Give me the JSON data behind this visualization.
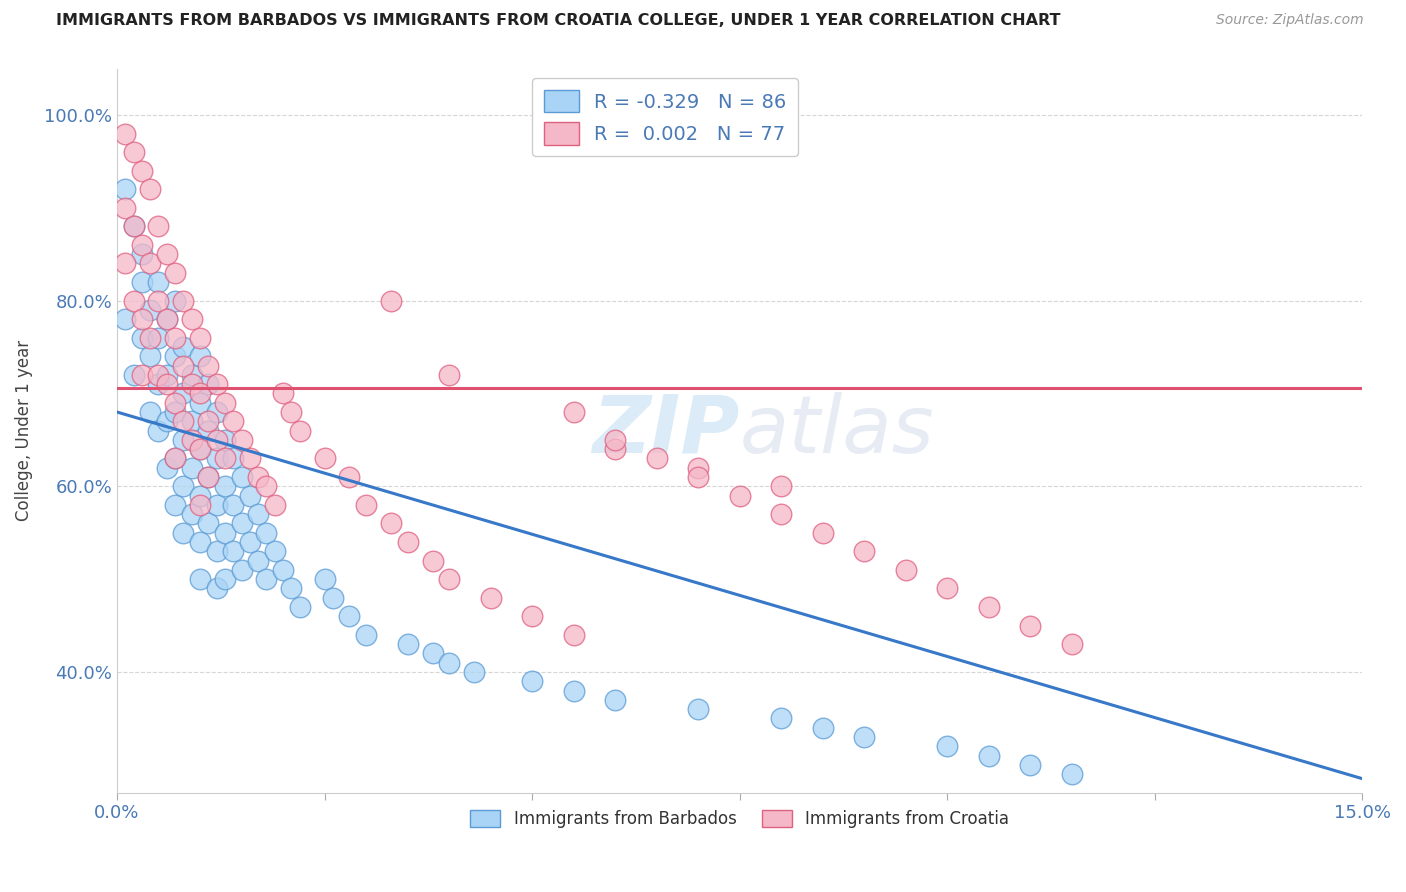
{
  "title": "IMMIGRANTS FROM BARBADOS VS IMMIGRANTS FROM CROATIA COLLEGE, UNDER 1 YEAR CORRELATION CHART",
  "source": "Source: ZipAtlas.com",
  "ylabel": "College, Under 1 year",
  "xlim": [
    0.0,
    0.15
  ],
  "ylim": [
    0.27,
    1.05
  ],
  "xticklabels_show": [
    "0.0%",
    "15.0%"
  ],
  "xticklabels_pos": [
    0.0,
    0.15
  ],
  "ytick_positions": [
    0.4,
    0.6,
    0.8,
    1.0
  ],
  "ytick_labels": [
    "40.0%",
    "60.0%",
    "80.0%",
    "100.0%"
  ],
  "legend_r_barbados": "-0.329",
  "legend_n_barbados": "86",
  "legend_r_croatia": "0.002",
  "legend_n_croatia": "77",
  "color_barbados_fill": "#aad4f5",
  "color_barbados_edge": "#5b9bd5",
  "color_croatia_fill": "#f5b8c8",
  "color_croatia_edge": "#e06080",
  "color_trend_barbados": "#3878c8",
  "color_trend_croatia": "#e05070",
  "watermark_text": "ZIPatlas",
  "barbados_x": [
    0.001,
    0.001,
    0.002,
    0.002,
    0.003,
    0.003,
    0.003,
    0.004,
    0.004,
    0.004,
    0.005,
    0.005,
    0.005,
    0.005,
    0.006,
    0.006,
    0.006,
    0.006,
    0.007,
    0.007,
    0.007,
    0.007,
    0.007,
    0.008,
    0.008,
    0.008,
    0.008,
    0.008,
    0.009,
    0.009,
    0.009,
    0.009,
    0.01,
    0.01,
    0.01,
    0.01,
    0.01,
    0.01,
    0.011,
    0.011,
    0.011,
    0.011,
    0.012,
    0.012,
    0.012,
    0.012,
    0.012,
    0.013,
    0.013,
    0.013,
    0.013,
    0.014,
    0.014,
    0.014,
    0.015,
    0.015,
    0.015,
    0.016,
    0.016,
    0.017,
    0.017,
    0.018,
    0.018,
    0.019,
    0.02,
    0.021,
    0.022,
    0.025,
    0.026,
    0.028,
    0.03,
    0.035,
    0.038,
    0.04,
    0.043,
    0.05,
    0.055,
    0.06,
    0.07,
    0.08,
    0.085,
    0.09,
    0.1,
    0.105,
    0.11,
    0.115
  ],
  "barbados_y": [
    0.92,
    0.78,
    0.88,
    0.72,
    0.85,
    0.82,
    0.76,
    0.79,
    0.74,
    0.68,
    0.82,
    0.76,
    0.71,
    0.66,
    0.78,
    0.72,
    0.67,
    0.62,
    0.8,
    0.74,
    0.68,
    0.63,
    0.58,
    0.75,
    0.7,
    0.65,
    0.6,
    0.55,
    0.72,
    0.67,
    0.62,
    0.57,
    0.74,
    0.69,
    0.64,
    0.59,
    0.54,
    0.5,
    0.71,
    0.66,
    0.61,
    0.56,
    0.68,
    0.63,
    0.58,
    0.53,
    0.49,
    0.65,
    0.6,
    0.55,
    0.5,
    0.63,
    0.58,
    0.53,
    0.61,
    0.56,
    0.51,
    0.59,
    0.54,
    0.57,
    0.52,
    0.55,
    0.5,
    0.53,
    0.51,
    0.49,
    0.47,
    0.5,
    0.48,
    0.46,
    0.44,
    0.43,
    0.42,
    0.41,
    0.4,
    0.39,
    0.38,
    0.37,
    0.36,
    0.35,
    0.34,
    0.33,
    0.32,
    0.31,
    0.3,
    0.29
  ],
  "croatia_x": [
    0.001,
    0.001,
    0.001,
    0.002,
    0.002,
    0.002,
    0.003,
    0.003,
    0.003,
    0.003,
    0.004,
    0.004,
    0.004,
    0.005,
    0.005,
    0.005,
    0.006,
    0.006,
    0.006,
    0.007,
    0.007,
    0.007,
    0.007,
    0.008,
    0.008,
    0.008,
    0.009,
    0.009,
    0.009,
    0.01,
    0.01,
    0.01,
    0.01,
    0.011,
    0.011,
    0.011,
    0.012,
    0.012,
    0.013,
    0.013,
    0.014,
    0.015,
    0.016,
    0.017,
    0.018,
    0.019,
    0.02,
    0.021,
    0.022,
    0.025,
    0.028,
    0.03,
    0.033,
    0.035,
    0.038,
    0.04,
    0.045,
    0.05,
    0.055,
    0.06,
    0.07,
    0.08,
    0.033,
    0.04,
    0.055,
    0.06,
    0.065,
    0.07,
    0.075,
    0.08,
    0.085,
    0.09,
    0.095,
    0.1,
    0.105,
    0.11,
    0.115
  ],
  "croatia_y": [
    0.98,
    0.9,
    0.84,
    0.96,
    0.88,
    0.8,
    0.94,
    0.86,
    0.78,
    0.72,
    0.92,
    0.84,
    0.76,
    0.88,
    0.8,
    0.72,
    0.85,
    0.78,
    0.71,
    0.83,
    0.76,
    0.69,
    0.63,
    0.8,
    0.73,
    0.67,
    0.78,
    0.71,
    0.65,
    0.76,
    0.7,
    0.64,
    0.58,
    0.73,
    0.67,
    0.61,
    0.71,
    0.65,
    0.69,
    0.63,
    0.67,
    0.65,
    0.63,
    0.61,
    0.6,
    0.58,
    0.7,
    0.68,
    0.66,
    0.63,
    0.61,
    0.58,
    0.56,
    0.54,
    0.52,
    0.5,
    0.48,
    0.46,
    0.44,
    0.64,
    0.62,
    0.6,
    0.8,
    0.72,
    0.68,
    0.65,
    0.63,
    0.61,
    0.59,
    0.57,
    0.55,
    0.53,
    0.51,
    0.49,
    0.47,
    0.45,
    0.43
  ],
  "trend_barbados_x0": 0.0,
  "trend_barbados_x1": 0.15,
  "trend_barbados_y0": 0.68,
  "trend_barbados_y1": 0.285,
  "trend_croatia_x0": 0.0,
  "trend_croatia_x1": 0.15,
  "trend_croatia_y0": 0.706,
  "trend_croatia_y1": 0.706
}
